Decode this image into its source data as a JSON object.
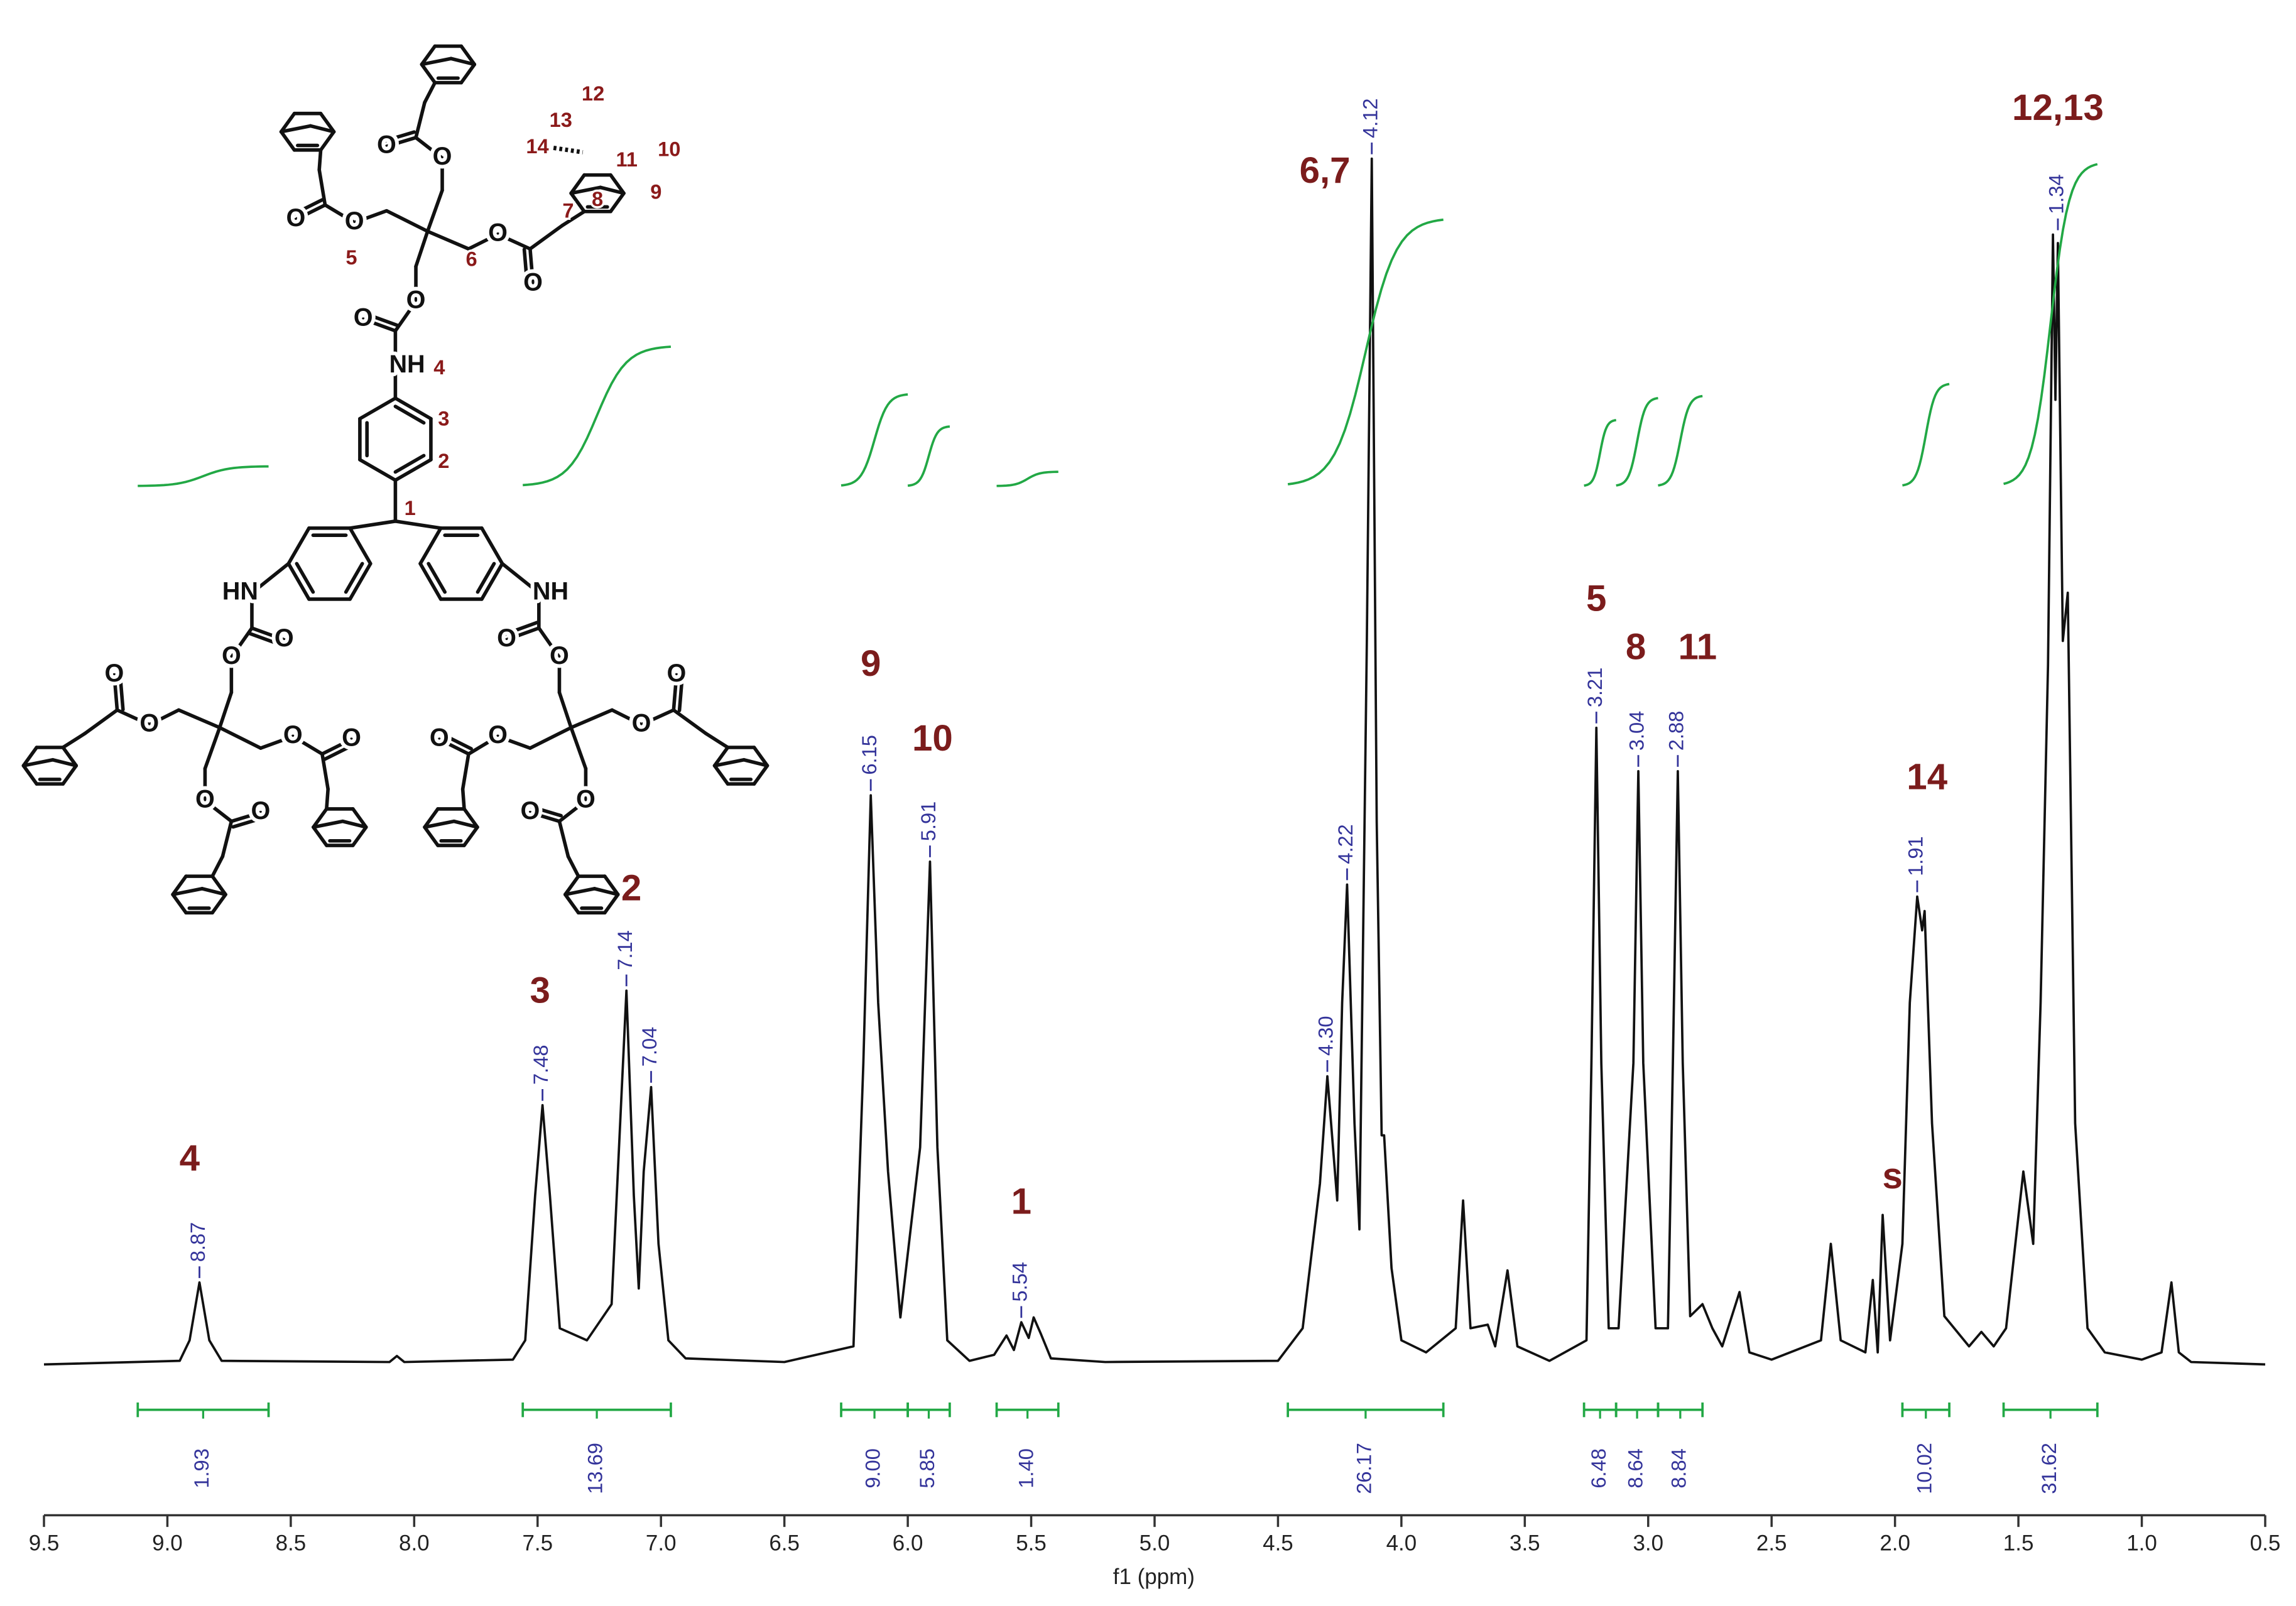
{
  "chart_data": {
    "type": "nmr",
    "x_label": "f1 (ppm)",
    "xlim": [
      9.5,
      0.5
    ],
    "xticks": [
      9.5,
      {
        "value": 9,
        "label": "9.0"
      },
      8.5,
      {
        "value": 8,
        "label": "8.0"
      },
      7.5,
      {
        "value": 7,
        "label": "7.0"
      },
      6.5,
      {
        "value": 6,
        "label": "6.0"
      },
      5.5,
      {
        "value": 5,
        "label": "5.0"
      },
      4.5,
      {
        "value": 4,
        "label": "4.0"
      },
      3.5,
      {
        "value": 3,
        "label": "3.0"
      },
      2.5,
      {
        "value": 2,
        "label": "2.0"
      },
      1.5,
      {
        "value": 1,
        "label": "1.0"
      },
      0.5
    ],
    "ylim": [
      0,
      110
    ],
    "spectrum": {
      "color": "#111111",
      "x": [
        9.5,
        8.95,
        8.91,
        8.87,
        8.83,
        8.78,
        8.1,
        8.07,
        8.04,
        7.6,
        7.55,
        7.51,
        7.48,
        7.45,
        7.41,
        7.3,
        7.2,
        7.17,
        7.14,
        7.11,
        7.09,
        7.07,
        7.04,
        7.01,
        6.97,
        6.9,
        6.5,
        6.22,
        6.18,
        6.15,
        6.12,
        6.08,
        6.03,
        5.95,
        5.91,
        5.88,
        5.84,
        5.75,
        5.65,
        5.6,
        5.57,
        5.54,
        5.51,
        5.49,
        5.46,
        5.42,
        5.2,
        4.5,
        4.4,
        4.33,
        4.3,
        4.26,
        4.24,
        4.22,
        4.19,
        4.17,
        4.14,
        4.12,
        4.1,
        4.08,
        4.07,
        4.04,
        4.0,
        3.9,
        3.78,
        3.75,
        3.72,
        3.65,
        3.62,
        3.57,
        3.53,
        3.4,
        3.25,
        3.23,
        3.21,
        3.19,
        3.16,
        3.12,
        3.06,
        3.04,
        3.02,
        2.97,
        2.92,
        2.9,
        2.88,
        2.86,
        2.83,
        2.78,
        2.74,
        2.7,
        2.63,
        2.59,
        2.5,
        2.3,
        2.26,
        2.22,
        2.12,
        2.09,
        2.07,
        2.05,
        2.02,
        1.97,
        1.94,
        1.91,
        1.89,
        1.88,
        1.85,
        1.8,
        1.7,
        1.65,
        1.6,
        1.55,
        1.48,
        1.44,
        1.41,
        1.38,
        1.36,
        1.35,
        1.34,
        1.32,
        1.3,
        1.27,
        1.22,
        1.15,
        1.0,
        0.92,
        0.88,
        0.85,
        0.8,
        0.5
      ],
      "values": [
        0,
        0.3,
        2,
        6.8,
        2,
        0.3,
        0.2,
        0.7,
        0.2,
        0.4,
        2,
        14,
        21.5,
        14,
        3,
        2,
        5,
        18,
        31,
        14,
        6.3,
        16,
        23,
        10,
        2,
        0.5,
        0.2,
        1.5,
        25,
        47.2,
        30,
        16,
        3.9,
        18,
        41.7,
        18,
        2,
        0.3,
        0.8,
        2.4,
        1.2,
        3.5,
        2.2,
        3.9,
        2.5,
        0.5,
        0.2,
        0.3,
        3,
        15,
        23.9,
        13.6,
        30,
        39.8,
        20,
        11.2,
        60,
        100,
        45,
        19,
        19,
        8,
        2,
        1,
        3,
        13.6,
        3,
        3.3,
        1.5,
        7.8,
        1.5,
        0.3,
        2,
        25,
        52.8,
        25,
        3,
        3,
        25,
        49.2,
        25,
        3,
        3,
        25,
        49.2,
        25,
        4,
        5,
        3,
        1.5,
        6,
        1,
        0.4,
        2,
        10,
        2,
        1,
        7,
        1,
        12.4,
        2,
        10,
        30,
        38.8,
        36,
        37.6,
        20,
        4,
        1.5,
        2.7,
        1.5,
        3,
        16,
        10,
        30,
        58,
        93.7,
        80,
        93,
        60,
        64,
        20,
        3,
        1,
        0.4,
        1,
        6.8,
        1,
        0.2,
        0
      ]
    },
    "peaks": {
      "color": "#33339a",
      "values": [
        8.87,
        7.48,
        7.14,
        7.04,
        6.15,
        5.91,
        5.54,
        4.3,
        4.22,
        4.12,
        3.21,
        3.04,
        2.88,
        1.91,
        1.34
      ],
      "value_labels": [
        "8.87",
        "7.48",
        "7.14",
        "7.04",
        "6.15",
        "5.91",
        "5.54",
        "4.30",
        "4.22",
        "4.12",
        "3.21",
        "3.04",
        "2.88",
        "1.91",
        "1.34"
      ]
    },
    "integrals": {
      "color": "#22a845",
      "label_color": "#33339a",
      "ranges": [
        [
          9.12,
          8.59
        ],
        [
          7.56,
          6.96
        ],
        [
          6.27,
          6.0
        ],
        [
          6.0,
          5.83
        ],
        [
          5.64,
          5.39
        ],
        [
          4.46,
          3.83
        ],
        [
          3.26,
          3.13
        ],
        [
          3.13,
          2.96
        ],
        [
          2.96,
          2.78
        ],
        [
          1.97,
          1.78
        ],
        [
          1.56,
          1.18
        ]
      ],
      "values": [
        1.93,
        13.69,
        9,
        5.85,
        1.4,
        26.17,
        6.48,
        8.64,
        8.84,
        10.02,
        31.62
      ],
      "value_labels": [
        "1.93",
        "13.69",
        "9.00",
        "5.85",
        "1.40",
        "26.17",
        "6.48",
        "8.64",
        "8.84",
        "10.02",
        "31.62"
      ]
    },
    "annotations": {
      "color": "#7b1c1c",
      "items": [
        {
          "text": "4",
          "x": 8.91,
          "y": 16.9
        },
        {
          "text": "3",
          "x": 7.49,
          "y": 30.8
        },
        {
          "text": "2",
          "x": 7.12,
          "y": 39.3
        },
        {
          "text": "9",
          "x": 6.15,
          "y": 57.9
        },
        {
          "text": "10",
          "x": 5.9,
          "y": 51.7
        },
        {
          "text": "1",
          "x": 5.54,
          "y": 13.3
        },
        {
          "text": "6,7",
          "x": 4.31,
          "y": 98.8
        },
        {
          "text": "5",
          "x": 3.21,
          "y": 63.3
        },
        {
          "text": "8",
          "x": 3.05,
          "y": 59.3
        },
        {
          "text": "11",
          "x": 2.8,
          "y": 59.3
        },
        {
          "text": "s",
          "x": 2.01,
          "y": 15.4
        },
        {
          "text": "14",
          "x": 1.87,
          "y": 48.5
        },
        {
          "text": "12,13",
          "x": 1.34,
          "y": 104
        }
      ]
    }
  },
  "structure": {
    "amines": [
      "NH",
      "HN",
      "NH"
    ],
    "oxygens": [
      "O",
      "O",
      "O",
      "O",
      "O",
      "O",
      "O",
      "O",
      "O",
      "O",
      "O",
      "O",
      "O",
      "O",
      "O",
      "O",
      "O",
      "O",
      "O",
      "O",
      "O",
      "O",
      "O",
      "O"
    ],
    "locants": [
      "12",
      "13",
      "14",
      "11",
      "10",
      "9",
      "8",
      "7",
      "6",
      "5",
      "4",
      "3",
      "2",
      "1"
    ]
  }
}
